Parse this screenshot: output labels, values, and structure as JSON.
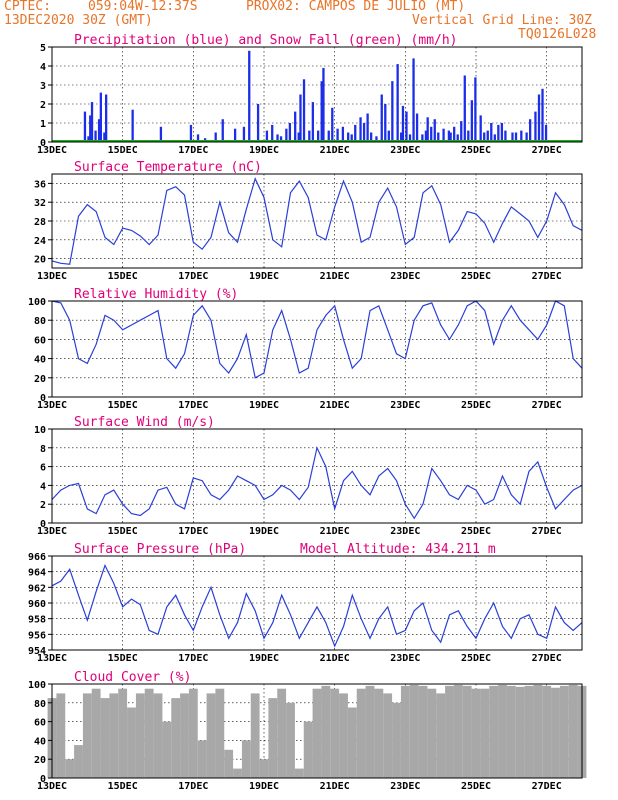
{
  "header": {
    "source": "CPTEC:",
    "coords": "059:04W-12:37S",
    "station": "PROX02: CAMPOS DE JULIO (MT)",
    "date": "13DEC2020 30Z (GMT)",
    "grid_note": "Vertical Grid Line: 30Z",
    "code": "TQ0126L028"
  },
  "colors": {
    "header": "#e8742a",
    "title": "#e0007a",
    "precip": "#1c2ee8",
    "snow": "#1aaa1a",
    "line": "#2a3fd8",
    "cloud": "#a8a8a8"
  },
  "x_labels": [
    "13DEC",
    "15DEC",
    "17DEC",
    "19DEC",
    "21DEC",
    "23DEC",
    "25DEC",
    "27DEC"
  ],
  "chart_data": [
    {
      "id": "precip",
      "type": "bar",
      "title": "Precipitation (blue) and Snow Fall (green) (mm/h)",
      "ylim": [
        0,
        5
      ],
      "yticks": [
        0,
        1,
        2,
        3,
        4,
        5
      ],
      "series": [
        {
          "name": "Precipitation",
          "x": [
            1.8,
            2.0,
            2.1,
            2.2,
            2.4,
            2.6,
            2.7,
            2.9,
            3.0,
            4.5,
            6.1,
            7.8,
            8.2,
            8.6,
            9.2,
            9.6,
            10.3,
            10.8,
            11.1,
            11.6,
            12.1,
            12.4,
            12.7,
            12.9,
            13.2,
            13.4,
            13.7,
            13.9,
            14.0,
            14.2,
            14.5,
            14.7,
            15.0,
            15.2,
            15.3,
            15.6,
            15.8,
            16.1,
            16.4,
            16.7,
            16.9,
            17.1,
            17.4,
            17.6,
            17.8,
            18.0,
            18.3,
            18.6,
            18.8,
            19.0,
            19.2,
            19.5,
            19.7,
            19.8,
            20.0,
            20.2,
            20.4,
            20.6,
            20.9,
            21.1,
            21.2,
            21.4,
            21.6,
            21.8,
            22.1,
            22.4,
            22.5,
            22.7,
            22.9,
            23.1,
            23.3,
            23.5,
            23.7,
            23.9,
            24.2,
            24.4,
            24.6,
            24.8,
            25.0,
            25.2,
            25.4,
            25.6,
            26.0,
            26.2,
            26.5,
            26.8,
            27.0,
            27.3,
            27.5,
            27.7,
            27.9
          ],
          "values": [
            1.6,
            0.3,
            1.4,
            2.1,
            0.6,
            1.2,
            2.6,
            0.5,
            2.5,
            1.7,
            0.8,
            0.9,
            0.4,
            0.2,
            0.5,
            1.2,
            0.7,
            0.8,
            4.8,
            2.0,
            0.6,
            0.9,
            0.4,
            0.3,
            0.7,
            1.0,
            1.6,
            0.5,
            2.5,
            3.3,
            0.6,
            2.1,
            0.6,
            3.2,
            3.9,
            0.6,
            1.8,
            0.7,
            0.8,
            0.5,
            0.4,
            0.9,
            1.3,
            1.0,
            1.5,
            0.5,
            0.3,
            2.5,
            2.0,
            0.6,
            3.2,
            4.1,
            0.5,
            1.9,
            1.6,
            0.4,
            4.4,
            1.5,
            0.4,
            0.6,
            1.3,
            0.8,
            1.2,
            0.5,
            0.7,
            0.6,
            0.5,
            0.8,
            0.4,
            1.1,
            3.5,
            0.6,
            2.2,
            3.4,
            1.4,
            0.5,
            0.6,
            1.0,
            0.4,
            0.9,
            1.0,
            0.6,
            0.5,
            0.5,
            0.6,
            0.5,
            1.2,
            1.6,
            2.5,
            2.8,
            0.9
          ]
        },
        {
          "name": "Snow Fall",
          "x": [],
          "values": []
        }
      ]
    },
    {
      "id": "temp",
      "type": "line",
      "title": "Surface Temperature (nC)",
      "ylim": [
        18,
        38
      ],
      "yticks": [
        20,
        24,
        28,
        32,
        36
      ],
      "x": [
        0,
        0.5,
        1.0,
        1.5,
        2.0,
        2.5,
        3.0,
        3.5,
        4.0,
        4.5,
        5.0,
        5.5,
        6.0,
        6.5,
        7.0,
        7.5,
        8.0,
        8.5,
        9.0,
        9.5,
        10.0,
        10.5,
        11.0,
        11.5,
        12.0,
        12.5,
        13.0,
        13.5,
        14.0,
        14.5,
        15.0,
        15.5,
        16.0,
        16.5,
        17.0,
        17.5,
        18.0,
        18.5,
        19.0,
        19.5,
        20.0,
        20.5,
        21.0,
        21.5,
        22.0,
        22.5,
        23.0,
        23.5,
        24.0,
        24.5,
        25.0,
        25.5,
        26.0,
        26.5,
        27.0,
        27.5,
        28.0,
        28.5,
        29.0,
        29.5,
        30.0
      ],
      "values": [
        19.5,
        19.0,
        18.8,
        29.0,
        31.5,
        30.0,
        24.5,
        23.0,
        26.5,
        26.0,
        24.8,
        23.0,
        25.0,
        34.5,
        35.3,
        33.5,
        23.5,
        22.0,
        24.5,
        32.0,
        25.5,
        23.5,
        30.5,
        37.0,
        33.0,
        24.0,
        22.5,
        34.0,
        36.5,
        33.0,
        25.0,
        24.0,
        31.0,
        36.5,
        32.0,
        23.5,
        24.5,
        32.0,
        35.0,
        31.0,
        23.0,
        24.5,
        34.0,
        35.5,
        31.5,
        23.5,
        26.0,
        30.0,
        29.5,
        27.5,
        23.5,
        27.5,
        31.0,
        29.5,
        28.0,
        24.5,
        28.0,
        34.0,
        31.5,
        27.0,
        26.0
      ]
    },
    {
      "id": "rh",
      "type": "line",
      "title": "Relative Humidity (%)",
      "ylim": [
        0,
        100
      ],
      "yticks": [
        0,
        20,
        40,
        60,
        80,
        100
      ],
      "x": [
        0,
        0.5,
        1.0,
        1.5,
        2.0,
        2.5,
        3.0,
        3.5,
        4.0,
        4.5,
        5.0,
        5.5,
        6.0,
        6.5,
        7.0,
        7.5,
        8.0,
        8.5,
        9.0,
        9.5,
        10.0,
        10.5,
        11.0,
        11.5,
        12.0,
        12.5,
        13.0,
        13.5,
        14.0,
        14.5,
        15.0,
        15.5,
        16.0,
        16.5,
        17.0,
        17.5,
        18.0,
        18.5,
        19.0,
        19.5,
        20.0,
        20.5,
        21.0,
        21.5,
        22.0,
        22.5,
        23.0,
        23.5,
        24.0,
        24.5,
        25.0,
        25.5,
        26.0,
        26.5,
        27.0,
        27.5,
        28.0,
        28.5,
        29.0,
        29.5,
        30.0
      ],
      "values": [
        100,
        98,
        80,
        40,
        35,
        55,
        85,
        80,
        70,
        75,
        80,
        85,
        90,
        40,
        30,
        45,
        85,
        95,
        80,
        35,
        25,
        40,
        65,
        20,
        25,
        70,
        90,
        60,
        25,
        30,
        70,
        85,
        95,
        60,
        30,
        40,
        90,
        95,
        70,
        45,
        40,
        80,
        95,
        98,
        75,
        60,
        75,
        95,
        100,
        90,
        55,
        80,
        95,
        80,
        70,
        60,
        75,
        100,
        95,
        40,
        30
      ]
    },
    {
      "id": "wind",
      "type": "line",
      "title": "Surface Wind (m/s)",
      "ylim": [
        0,
        10
      ],
      "yticks": [
        0,
        2,
        4,
        6,
        8,
        10
      ],
      "x": [
        0,
        0.5,
        1.0,
        1.5,
        2.0,
        2.5,
        3.0,
        3.5,
        4.0,
        4.5,
        5.0,
        5.5,
        6.0,
        6.5,
        7.0,
        7.5,
        8.0,
        8.5,
        9.0,
        9.5,
        10.0,
        10.5,
        11.0,
        11.5,
        12.0,
        12.5,
        13.0,
        13.5,
        14.0,
        14.5,
        15.0,
        15.5,
        16.0,
        16.5,
        17.0,
        17.5,
        18.0,
        18.5,
        19.0,
        19.5,
        20.0,
        20.5,
        21.0,
        21.5,
        22.0,
        22.5,
        23.0,
        23.5,
        24.0,
        24.5,
        25.0,
        25.5,
        26.0,
        26.5,
        27.0,
        27.5,
        28.0,
        28.5,
        29.0,
        29.5,
        30.0
      ],
      "values": [
        2.5,
        3.5,
        4.0,
        4.2,
        1.5,
        1.0,
        3.0,
        3.5,
        2.0,
        1.0,
        0.8,
        1.5,
        3.5,
        3.8,
        2.0,
        1.5,
        4.8,
        4.5,
        3.0,
        2.5,
        3.5,
        5.0,
        4.5,
        4.0,
        2.5,
        3.0,
        4.0,
        3.5,
        2.5,
        3.8,
        8.0,
        6.0,
        1.5,
        4.5,
        5.5,
        4.0,
        3.0,
        5.0,
        5.8,
        4.5,
        2.0,
        0.5,
        2.0,
        5.8,
        4.5,
        3.0,
        2.5,
        4.0,
        3.5,
        2.0,
        2.5,
        5.0,
        3.0,
        2.0,
        5.5,
        6.5,
        3.8,
        1.5,
        2.5,
        3.5,
        4.0
      ]
    },
    {
      "id": "pressure",
      "type": "line",
      "title": "Surface Pressure (hPa)",
      "subtitle": "Model Altitude: 434.211 m",
      "ylim": [
        954,
        966
      ],
      "yticks": [
        954,
        956,
        958,
        960,
        962,
        964,
        966
      ],
      "x": [
        0,
        0.5,
        1.0,
        1.5,
        2.0,
        2.5,
        3.0,
        3.5,
        4.0,
        4.5,
        5.0,
        5.5,
        6.0,
        6.5,
        7.0,
        7.5,
        8.0,
        8.5,
        9.0,
        9.5,
        10.0,
        10.5,
        11.0,
        11.5,
        12.0,
        12.5,
        13.0,
        13.5,
        14.0,
        14.5,
        15.0,
        15.5,
        16.0,
        16.5,
        17.0,
        17.5,
        18.0,
        18.5,
        19.0,
        19.5,
        20.0,
        20.5,
        21.0,
        21.5,
        22.0,
        22.5,
        23.0,
        23.5,
        24.0,
        24.5,
        25.0,
        25.5,
        26.0,
        26.5,
        27.0,
        27.5,
        28.0,
        28.5,
        29.0,
        29.5,
        30.0
      ],
      "values": [
        962.2,
        962.8,
        964.3,
        961.0,
        957.8,
        961.5,
        964.8,
        962.5,
        959.5,
        960.5,
        959.8,
        956.5,
        956.0,
        959.5,
        961.0,
        958.5,
        956.5,
        959.5,
        962.0,
        958.5,
        955.5,
        957.5,
        961.2,
        959.0,
        955.5,
        957.5,
        961.0,
        958.5,
        955.5,
        957.5,
        959.5,
        957.5,
        954.5,
        957.0,
        961.0,
        958.0,
        955.5,
        958.0,
        959.5,
        956.0,
        956.5,
        959.0,
        960.0,
        956.5,
        955.0,
        958.5,
        959.0,
        957.0,
        955.5,
        958.0,
        960.0,
        957.0,
        955.5,
        958.0,
        958.5,
        956.0,
        955.5,
        959.5,
        957.5,
        956.5,
        957.5
      ]
    },
    {
      "id": "cloud",
      "type": "area",
      "title": "Cloud Cover (%)",
      "ylim": [
        0,
        100
      ],
      "yticks": [
        0,
        20,
        40,
        60,
        80,
        100
      ],
      "x": [
        0,
        0.5,
        1.0,
        1.5,
        2.0,
        2.5,
        3.0,
        3.5,
        4.0,
        4.5,
        5.0,
        5.5,
        6.0,
        6.5,
        7.0,
        7.5,
        8.0,
        8.5,
        9.0,
        9.5,
        10.0,
        10.5,
        11.0,
        11.5,
        12.0,
        12.5,
        13.0,
        13.5,
        14.0,
        14.5,
        15.0,
        15.5,
        16.0,
        16.5,
        17.0,
        17.5,
        18.0,
        18.5,
        19.0,
        19.5,
        20.0,
        20.5,
        21.0,
        21.5,
        22.0,
        22.5,
        23.0,
        23.5,
        24.0,
        24.5,
        25.0,
        25.5,
        26.0,
        26.5,
        27.0,
        27.5,
        28.0,
        28.5,
        29.0,
        29.5,
        30.0
      ],
      "values": [
        85,
        90,
        20,
        35,
        90,
        95,
        85,
        90,
        95,
        75,
        90,
        95,
        90,
        60,
        85,
        90,
        95,
        40,
        90,
        95,
        30,
        10,
        40,
        90,
        20,
        85,
        95,
        80,
        10,
        60,
        95,
        98,
        95,
        90,
        75,
        95,
        98,
        95,
        90,
        80,
        98,
        99,
        98,
        95,
        90,
        98,
        99,
        98,
        95,
        95,
        98,
        99,
        98,
        97,
        98,
        99,
        98,
        96,
        98,
        99,
        98
      ]
    }
  ]
}
